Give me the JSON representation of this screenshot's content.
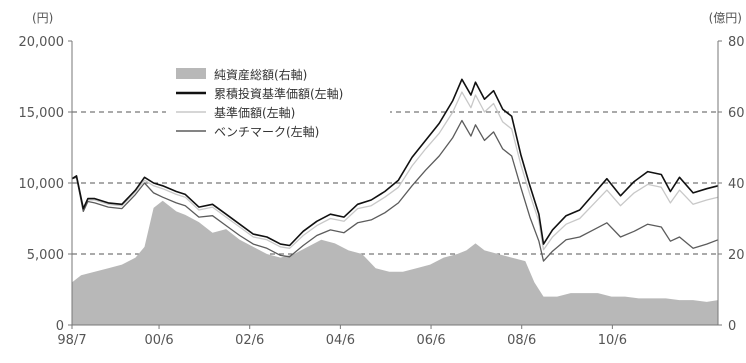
{
  "chart_data": {
    "type": "area+line",
    "left_axis": {
      "unit": "(円)",
      "ticks": [
        "20,000",
        "15,000",
        "10,000",
        "5,000",
        "0"
      ],
      "tick_values": [
        20000,
        15000,
        10000,
        5000,
        0
      ],
      "ylim": [
        0,
        20000
      ]
    },
    "right_axis": {
      "unit": "(億円)",
      "ticks": [
        "80",
        "60",
        "40",
        "20",
        "0"
      ],
      "tick_values": [
        80,
        60,
        40,
        20,
        0
      ],
      "ylim": [
        0,
        80
      ]
    },
    "x_axis": {
      "ticks": [
        "98/7",
        "00/6",
        "02/6",
        "04/6",
        "06/6",
        "08/6",
        "10/6"
      ],
      "tick_values": [
        1998.5,
        2000.42,
        2002.42,
        2004.42,
        2006.42,
        2008.42,
        2010.42
      ],
      "xlim": [
        1998.5,
        2012.75
      ]
    },
    "grid": {
      "horizontal_dashed_at": [
        15000,
        10000,
        5000
      ]
    },
    "legend_position": "top-left inside plot",
    "series": [
      {
        "name": "純資産総額(右軸)",
        "axis": "right",
        "style": "area",
        "color": "#b8b8b8",
        "x": [
          1998.5,
          1998.7,
          1999.0,
          1999.3,
          1999.6,
          1999.9,
          2000.1,
          2000.3,
          2000.5,
          2000.8,
          2001.0,
          2001.3,
          2001.6,
          2001.9,
          2002.2,
          2002.5,
          2002.8,
          2003.1,
          2003.4,
          2003.7,
          2004.0,
          2004.3,
          2004.6,
          2004.9,
          2005.2,
          2005.5,
          2005.8,
          2006.1,
          2006.4,
          2006.7,
          2007.0,
          2007.2,
          2007.4,
          2007.6,
          2007.9,
          2008.2,
          2008.5,
          2008.7,
          2008.9,
          2009.2,
          2009.5,
          2009.8,
          2010.1,
          2010.4,
          2010.7,
          2011.0,
          2011.3,
          2011.6,
          2011.9,
          2012.2,
          2012.5,
          2012.75
        ],
        "values": [
          12,
          14,
          15,
          16,
          17,
          19,
          22,
          33,
          35,
          32,
          31,
          29,
          26,
          27,
          24,
          22,
          20,
          19,
          20,
          22,
          24,
          23,
          21,
          20,
          16,
          15,
          15,
          16,
          17,
          19,
          20,
          21,
          23,
          21,
          20,
          19,
          18,
          12,
          8,
          8,
          9,
          9,
          9,
          8,
          8,
          7.5,
          7.5,
          7.5,
          7,
          7,
          6.5,
          7
        ]
      },
      {
        "name": "累積投資基準価額(左軸)",
        "axis": "left",
        "style": "line",
        "color": "#111111",
        "x": [
          1998.5,
          1998.6,
          1998.75,
          1998.85,
          1999.0,
          1999.3,
          1999.6,
          1999.9,
          2000.1,
          2000.3,
          2000.5,
          2000.8,
          2001.0,
          2001.3,
          2001.6,
          2001.9,
          2002.2,
          2002.5,
          2002.8,
          2003.1,
          2003.3,
          2003.6,
          2003.9,
          2004.2,
          2004.5,
          2004.8,
          2005.1,
          2005.4,
          2005.7,
          2006.0,
          2006.3,
          2006.6,
          2006.9,
          2007.1,
          2007.3,
          2007.4,
          2007.6,
          2007.8,
          2008.0,
          2008.2,
          2008.4,
          2008.6,
          2008.8,
          2008.9,
          2009.1,
          2009.4,
          2009.7,
          2010.0,
          2010.3,
          2010.6,
          2010.9,
          2011.2,
          2011.5,
          2011.7,
          2011.9,
          2012.2,
          2012.5,
          2012.75
        ],
        "values": [
          10300,
          10500,
          8200,
          8900,
          8900,
          8600,
          8500,
          9500,
          10400,
          10000,
          9800,
          9400,
          9200,
          8300,
          8500,
          7800,
          7100,
          6400,
          6200,
          5700,
          5600,
          6600,
          7300,
          7800,
          7600,
          8500,
          8800,
          9400,
          10200,
          11800,
          13000,
          14200,
          15800,
          17300,
          16200,
          17100,
          15900,
          16500,
          15200,
          14700,
          12000,
          9800,
          7800,
          5700,
          6700,
          7700,
          8100,
          9200,
          10300,
          9100,
          10100,
          10800,
          10600,
          9400,
          10400,
          9300,
          9600,
          9800
        ]
      },
      {
        "name": "基準価額(左軸)",
        "axis": "left",
        "style": "line",
        "color": "#c8c8c8",
        "x": [
          1998.5,
          1998.6,
          1998.75,
          1998.85,
          1999.0,
          1999.3,
          1999.6,
          1999.9,
          2000.1,
          2000.3,
          2000.5,
          2000.8,
          2001.0,
          2001.3,
          2001.6,
          2001.9,
          2002.2,
          2002.5,
          2002.8,
          2003.1,
          2003.3,
          2003.6,
          2003.9,
          2004.2,
          2004.5,
          2004.8,
          2005.1,
          2005.4,
          2005.7,
          2006.0,
          2006.3,
          2006.6,
          2006.9,
          2007.1,
          2007.3,
          2007.4,
          2007.6,
          2007.8,
          2008.0,
          2008.2,
          2008.4,
          2008.6,
          2008.8,
          2008.9,
          2009.1,
          2009.4,
          2009.7,
          2010.0,
          2010.3,
          2010.6,
          2010.9,
          2011.2,
          2011.5,
          2011.7,
          2011.9,
          2012.2,
          2012.5,
          2012.75
        ],
        "values": [
          10300,
          10500,
          8000,
          8800,
          8800,
          8500,
          8400,
          9400,
          10200,
          9800,
          9600,
          9200,
          9000,
          8100,
          8300,
          7600,
          6900,
          6200,
          6000,
          5500,
          5400,
          6300,
          7000,
          7500,
          7300,
          8200,
          8400,
          9000,
          9700,
          11200,
          12400,
          13500,
          15000,
          16400,
          15300,
          16200,
          15000,
          15600,
          14300,
          13800,
          11300,
          9200,
          7300,
          5300,
          6200,
          7100,
          7500,
          8500,
          9500,
          8400,
          9300,
          9900,
          9700,
          8600,
          9500,
          8500,
          8800,
          9000
        ]
      },
      {
        "name": "ベンチマーク(左軸)",
        "axis": "left",
        "style": "line",
        "color": "#5c5c5c",
        "x": [
          1998.5,
          1998.6,
          1998.75,
          1998.85,
          1999.0,
          1999.3,
          1999.6,
          1999.9,
          2000.1,
          2000.3,
          2000.5,
          2000.8,
          2001.0,
          2001.3,
          2001.6,
          2001.9,
          2002.2,
          2002.5,
          2002.8,
          2003.1,
          2003.3,
          2003.6,
          2003.9,
          2004.2,
          2004.5,
          2004.8,
          2005.1,
          2005.4,
          2005.7,
          2006.0,
          2006.3,
          2006.6,
          2006.9,
          2007.1,
          2007.3,
          2007.4,
          2007.6,
          2007.8,
          2008.0,
          2008.2,
          2008.4,
          2008.6,
          2008.8,
          2008.9,
          2009.1,
          2009.4,
          2009.7,
          2010.0,
          2010.3,
          2010.6,
          2010.9,
          2011.2,
          2011.5,
          2011.7,
          2011.9,
          2012.2,
          2012.5,
          2012.75
        ],
        "values": [
          10300,
          10400,
          8000,
          8700,
          8600,
          8300,
          8200,
          9200,
          10000,
          9300,
          9000,
          8600,
          8400,
          7600,
          7700,
          7000,
          6300,
          5700,
          5400,
          4900,
          4800,
          5600,
          6300,
          6700,
          6500,
          7200,
          7400,
          7900,
          8600,
          9800,
          10900,
          11900,
          13200,
          14400,
          13300,
          14100,
          13000,
          13600,
          12400,
          11900,
          9700,
          7600,
          5900,
          4500,
          5200,
          6000,
          6200,
          6700,
          7200,
          6200,
          6600,
          7100,
          6900,
          5900,
          6200,
          5400,
          5700,
          6000
        ]
      }
    ]
  }
}
